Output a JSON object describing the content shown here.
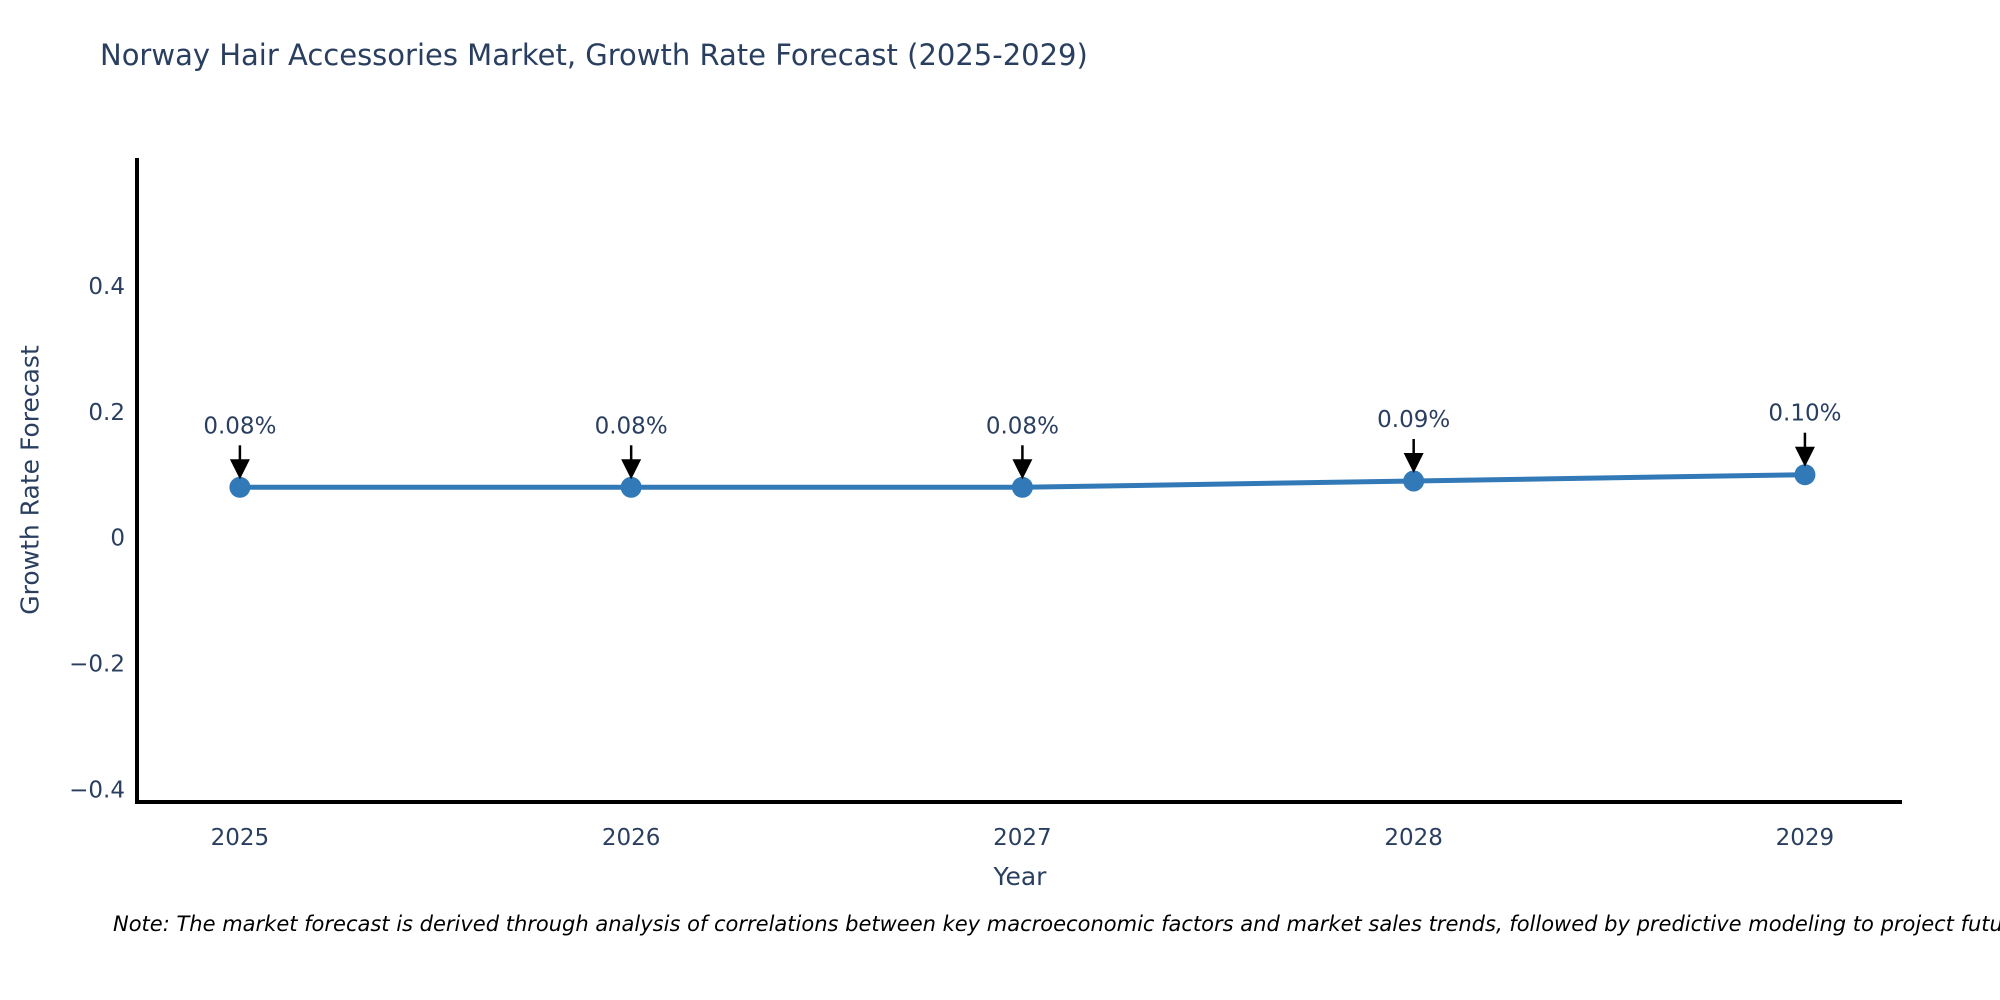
{
  "title": "Norway Hair Accessories Market, Growth Rate Forecast (2025-2029)",
  "note": "Note: The market forecast is derived through analysis of correlations between key macroeconomic factors and market sales trends, followed by predictive modeling to project future sales.",
  "colors": {
    "text": "#2a3f5f",
    "line": "#3279b7",
    "axis": "#000000",
    "arrow": "#000000",
    "background": "#ffffff"
  },
  "chart_data": {
    "type": "line",
    "title": "Norway Hair Accessories Market, Growth Rate Forecast (2025-2029)",
    "xlabel": "Year",
    "ylabel": "Growth Rate Forecast",
    "x": [
      2025,
      2026,
      2027,
      2028,
      2029
    ],
    "series": [
      {
        "name": "Growth Rate Forecast",
        "values": [
          0.08,
          0.08,
          0.08,
          0.09,
          0.1
        ]
      }
    ],
    "point_labels": [
      "0.08%",
      "0.08%",
      "0.08%",
      "0.09%",
      "0.10%"
    ],
    "xtick_labels": [
      "2025",
      "2026",
      "2027",
      "2028",
      "2029"
    ],
    "yticks": [
      0.4,
      0.2,
      0,
      -0.2,
      -0.4
    ],
    "ytick_labels": [
      "0.4",
      "0.2",
      "0",
      "−0.2",
      "−0.4"
    ],
    "xlim": [
      2024.737,
      2029.243
    ],
    "ylim": [
      -0.42,
      0.6
    ],
    "grid": false,
    "legend": false,
    "annotations_arrows": true
  }
}
